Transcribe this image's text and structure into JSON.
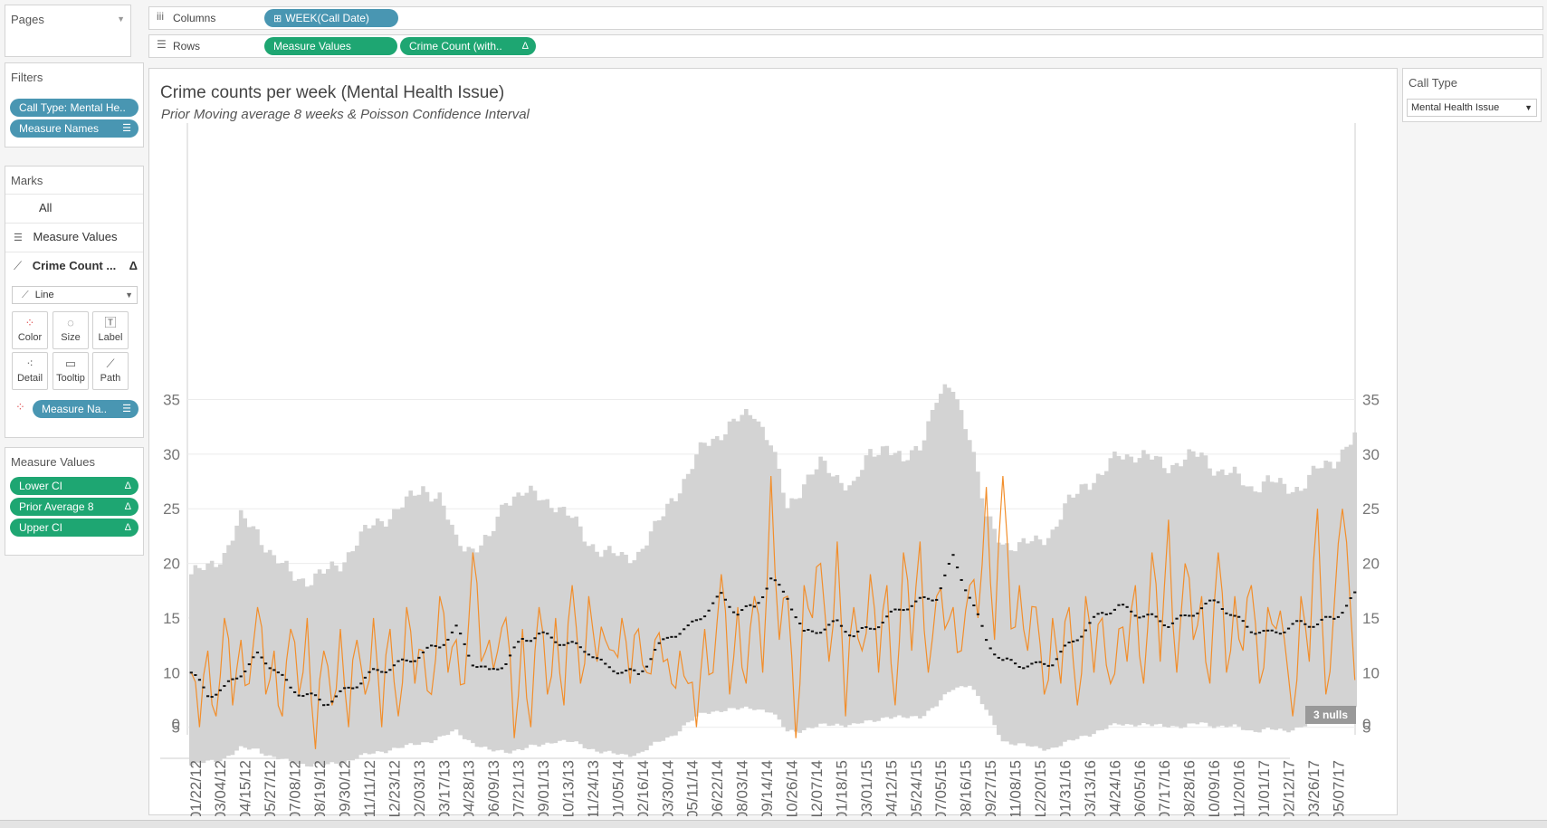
{
  "shelves": {
    "columns_label": "Columns",
    "rows_label": "Rows",
    "columns_pill": "WEEK(Call Date)",
    "rows_pills": [
      "Measure Values",
      "Crime Count (with.."
    ]
  },
  "pages": {
    "title": "Pages"
  },
  "filters": {
    "title": "Filters",
    "items": [
      "Call Type: Mental He..",
      "Measure Names"
    ]
  },
  "marks": {
    "title": "Marks",
    "rows": [
      "All",
      "Measure Values",
      "Crime Count ..."
    ],
    "mark_type": "Line",
    "buttons": [
      "Color",
      "Size",
      "Label",
      "Detail",
      "Tooltip",
      "Path"
    ],
    "color_pill": "Measure Na.."
  },
  "measure_values": {
    "title": "Measure Values",
    "items": [
      "Lower CI",
      "Prior Average 8",
      "Upper CI"
    ]
  },
  "call_type": {
    "title": "Call Type",
    "value": "Mental Health Issue"
  },
  "nulls_badge": "3 nulls",
  "colors": {
    "band": "#d3d3d3",
    "line": "#f28e2b",
    "avg": "#111111",
    "pill_blue": "#4996b2",
    "pill_green": "#1ea672"
  },
  "chart_data": {
    "type": "area",
    "title": "Crime counts per week (Mental Health Issue)",
    "subtitle": "Prior Moving average 8 weeks & Poisson Confidence Interval",
    "xlabel": "",
    "ylabel": "",
    "ylim": [
      0,
      38
    ],
    "yticks": [
      0,
      5,
      10,
      15,
      20,
      25,
      30,
      35
    ],
    "grid": true,
    "x_tick_labels": [
      "01/22/12",
      "03/04/12",
      "04/15/12",
      "05/27/12",
      "07/08/12",
      "08/19/12",
      "09/30/12",
      "11/11/12",
      "12/23/12",
      "02/03/13",
      "03/17/13",
      "04/28/13",
      "06/09/13",
      "07/21/13",
      "09/01/13",
      "10/13/13",
      "11/24/13",
      "01/05/14",
      "02/16/14",
      "03/30/14",
      "05/11/14",
      "06/22/14",
      "08/03/14",
      "09/14/14",
      "10/26/14",
      "12/07/14",
      "01/18/15",
      "03/01/15",
      "04/12/15",
      "05/24/15",
      "07/05/15",
      "08/16/15",
      "09/27/15",
      "11/08/15",
      "12/20/15",
      "01/31/16",
      "03/13/16",
      "04/24/16",
      "06/05/16",
      "07/17/16",
      "08/28/16",
      "10/09/16",
      "11/20/16",
      "01/01/17",
      "02/12/17",
      "03/26/17",
      "05/07/17"
    ],
    "weeks_per_tick": 6,
    "series": [
      {
        "name": "Upper CI",
        "control_x": [
          0,
          4,
          8,
          12,
          16,
          20,
          24,
          28,
          32,
          36,
          40,
          44,
          48,
          52,
          56,
          60,
          64,
          68,
          72,
          76,
          80,
          84,
          88,
          92,
          96,
          100,
          104,
          108,
          112,
          116,
          120,
          124,
          128,
          132,
          136,
          140,
          144,
          148,
          152,
          156,
          160,
          164,
          168,
          172,
          176,
          180,
          184,
          188,
          192,
          196,
          200,
          204,
          208,
          212,
          216,
          220,
          224,
          228,
          232,
          236,
          240,
          244,
          248,
          252,
          256,
          260,
          264,
          268,
          272,
          276,
          281
        ],
        "control_y": [
          19,
          19.5,
          21,
          24,
          23,
          20.5,
          19,
          18.5,
          19,
          20,
          22,
          23.5,
          24.5,
          25.5,
          27,
          26,
          22,
          21.5,
          22,
          26,
          26.5,
          26,
          25.5,
          24,
          22,
          21,
          20.5,
          21,
          23,
          26,
          28,
          31,
          32,
          33,
          34,
          31,
          25,
          27.5,
          29,
          28,
          27,
          30,
          31,
          29,
          31,
          35,
          36,
          32,
          24,
          22,
          21.5,
          22,
          23,
          25.5,
          27.5,
          28,
          30,
          30,
          29.5,
          29,
          29.5,
          30,
          28.5,
          28,
          27,
          27.5,
          27,
          27,
          28.5,
          29.5,
          31.5
        ]
      },
      {
        "name": "Lower CI",
        "control_x": [
          0,
          4,
          8,
          12,
          16,
          20,
          24,
          28,
          32,
          36,
          40,
          44,
          48,
          52,
          56,
          60,
          64,
          68,
          72,
          76,
          80,
          84,
          88,
          92,
          96,
          100,
          104,
          108,
          112,
          116,
          120,
          124,
          128,
          132,
          136,
          140,
          144,
          148,
          152,
          156,
          160,
          164,
          168,
          172,
          176,
          180,
          184,
          188,
          192,
          196,
          200,
          204,
          208,
          212,
          216,
          220,
          224,
          228,
          232,
          236,
          240,
          244,
          248,
          252,
          256,
          260,
          264,
          268,
          272,
          276,
          281
        ],
        "control_y": [
          1.5,
          1.8,
          2.2,
          3,
          3,
          2.2,
          1.8,
          1.6,
          1.5,
          1.7,
          2.2,
          2.6,
          3,
          3.2,
          3.6,
          4,
          4.6,
          3.6,
          2.8,
          2.8,
          3,
          3.3,
          3.8,
          3.6,
          3.1,
          2.7,
          2.4,
          2.6,
          3.4,
          4.2,
          5.4,
          6.3,
          6.6,
          6.6,
          6.8,
          6.4,
          4.6,
          4.8,
          5.1,
          5.3,
          5.2,
          5.5,
          6,
          5.8,
          6,
          7,
          8.5,
          9,
          6.5,
          3.8,
          3.4,
          3.1,
          3.1,
          3.6,
          4.3,
          4.7,
          5.3,
          5.3,
          5.1,
          5.2,
          5,
          5.4,
          5.1,
          5,
          4.7,
          4.8,
          4.6,
          5.1,
          5.6,
          6.1,
          6.7
        ]
      },
      {
        "name": "Prior Average 8",
        "control_x": [
          0,
          4,
          8,
          12,
          16,
          20,
          24,
          28,
          32,
          36,
          40,
          44,
          48,
          52,
          56,
          60,
          64,
          68,
          72,
          76,
          80,
          84,
          88,
          92,
          96,
          100,
          104,
          108,
          112,
          116,
          120,
          124,
          128,
          132,
          136,
          140,
          144,
          148,
          152,
          156,
          160,
          164,
          168,
          172,
          176,
          180,
          184,
          188,
          192,
          196,
          200,
          204,
          208,
          212,
          216,
          220,
          224,
          228,
          232,
          236,
          240,
          244,
          248,
          252,
          256,
          260,
          264,
          268,
          272,
          276,
          281
        ],
        "control_y": [
          10,
          8,
          8.5,
          10,
          11.5,
          10.5,
          8.5,
          8,
          7.2,
          8,
          9,
          10,
          10.5,
          11,
          11.8,
          12.5,
          14,
          11,
          10,
          11,
          13,
          13.5,
          13,
          12.5,
          12,
          10.5,
          10.2,
          9.8,
          12,
          13.5,
          14,
          15.5,
          17,
          15.5,
          16,
          18.5,
          17,
          13.5,
          14,
          14.5,
          13.5,
          14,
          15,
          16,
          16.5,
          17,
          20.5,
          17,
          13,
          11,
          10.8,
          10.6,
          11,
          12.5,
          14,
          15.5,
          16,
          15.5,
          15,
          14.5,
          15,
          16,
          16.5,
          15,
          14,
          13.5,
          14,
          14.5,
          14.5,
          15,
          17
        ]
      },
      {
        "name": "Crime Count",
        "control_x": [
          0,
          2,
          4,
          6,
          8,
          10,
          12,
          14,
          16,
          18,
          20,
          22,
          24,
          26,
          28,
          30,
          32,
          34,
          36,
          38,
          40,
          42,
          44,
          46,
          48,
          50,
          52,
          54,
          56,
          58,
          60,
          62,
          64,
          66,
          68,
          70,
          72,
          74,
          76,
          78,
          80,
          82,
          84,
          86,
          88,
          90,
          92,
          94,
          96,
          98,
          100,
          102,
          104,
          106,
          108,
          110,
          112,
          114,
          116,
          118,
          120,
          122,
          124,
          126,
          128,
          130,
          132,
          134,
          136,
          138,
          140,
          142,
          144,
          146,
          148,
          150,
          152,
          154,
          156,
          158,
          160,
          162,
          164,
          166,
          168,
          170,
          172,
          174,
          176,
          178,
          180,
          182,
          184,
          186,
          188,
          190,
          192,
          194,
          196,
          198,
          200,
          202,
          204,
          206,
          208,
          210,
          212,
          214,
          216,
          218,
          220,
          222,
          224,
          226,
          228,
          230,
          232,
          234,
          236,
          238,
          240,
          242,
          244,
          246,
          248,
          250,
          252,
          254,
          256,
          258,
          260,
          262,
          264,
          266,
          268,
          270,
          272,
          274,
          276,
          278,
          281
        ],
        "control_y": [
          10,
          5,
          12,
          6,
          15,
          7,
          13,
          9,
          16,
          8,
          12,
          6,
          14,
          8,
          15,
          3,
          12,
          7,
          14,
          5,
          13,
          8,
          15,
          5,
          14,
          6,
          16,
          9,
          12,
          8,
          17,
          10,
          13,
          9,
          21,
          11,
          13,
          12,
          15,
          4,
          14,
          5,
          16,
          8,
          15,
          7,
          18,
          9,
          17,
          11,
          13,
          12,
          15,
          9,
          14,
          10,
          13,
          11,
          9,
          12,
          9,
          5,
          14,
          10,
          19,
          8,
          16,
          9,
          17,
          10,
          28,
          13,
          17,
          4,
          18,
          15,
          20,
          11,
          22,
          6,
          16,
          12,
          19,
          10,
          18,
          7,
          21,
          12,
          22,
          10,
          17,
          14,
          16,
          12,
          18,
          15,
          27,
          13,
          28,
          14,
          18,
          12,
          16,
          8,
          15,
          9,
          16,
          7,
          17,
          10,
          15,
          9,
          14,
          11,
          18,
          9,
          21,
          11,
          24,
          10,
          20,
          13,
          17,
          9,
          21,
          10,
          17,
          12,
          18,
          9,
          16,
          14,
          13,
          6,
          17,
          11,
          25,
          8,
          16,
          25,
          11
        ]
      }
    ]
  }
}
